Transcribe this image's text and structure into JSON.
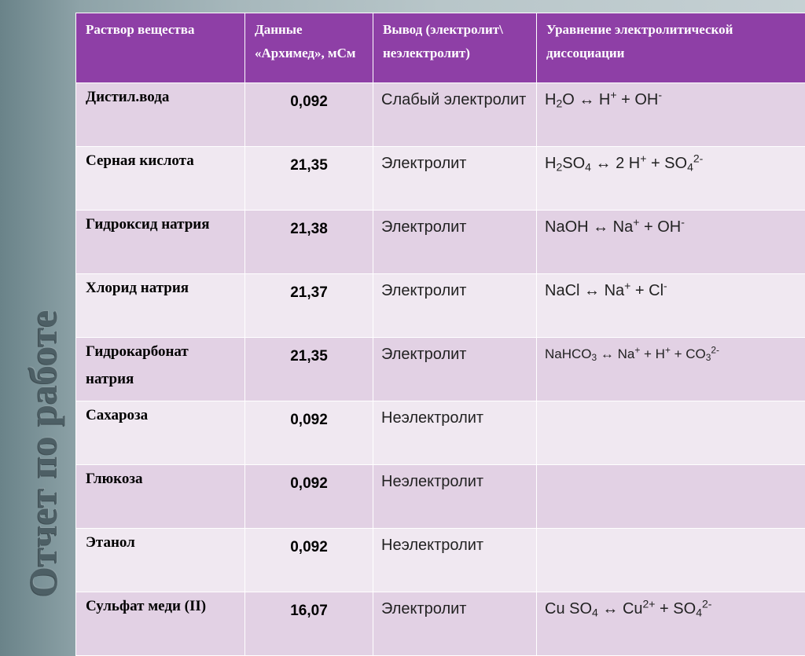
{
  "side_title": "Отчет по работе",
  "table": {
    "headers": [
      "Раствор вещества",
      "Данные «Архимед», мСм",
      "Вывод (электролит\\ неэлектролит)",
      "Уравнение электролитической диссоциации"
    ],
    "rows": [
      {
        "substance": "Дистил.вода",
        "value": "0,092",
        "conclusion": "Слабый электролит",
        "equation": [
          {
            "t": "H"
          },
          {
            "t": "2",
            "s": "sub"
          },
          {
            "t": "O ↔ H"
          },
          {
            "t": "+",
            "s": "sup"
          },
          {
            "t": " + OH"
          },
          {
            "t": "-",
            "s": "sup"
          }
        ]
      },
      {
        "substance": "Серная кислота",
        "value": "21,35",
        "conclusion": "Электролит",
        "equation": [
          {
            "t": "H"
          },
          {
            "t": "2",
            "s": "sub"
          },
          {
            "t": "SO"
          },
          {
            "t": "4",
            "s": "sub"
          },
          {
            "t": " ↔ 2 H"
          },
          {
            "t": "+",
            "s": "sup"
          },
          {
            "t": " + SO"
          },
          {
            "t": "4",
            "s": "sub"
          },
          {
            "t": "2-",
            "s": "sup"
          }
        ]
      },
      {
        "substance": "Гидроксид натрия",
        "value": "21,38",
        "conclusion": "Электролит",
        "equation": [
          {
            "t": "NaOH ↔ Na"
          },
          {
            "t": "+",
            "s": "sup"
          },
          {
            "t": " + OH"
          },
          {
            "t": "-",
            "s": "sup"
          }
        ]
      },
      {
        "substance": "Хлорид натрия",
        "value": "21,37",
        "conclusion": "Электролит",
        "equation": [
          {
            "t": "NaCl ↔ Na"
          },
          {
            "t": "+",
            "s": "sup"
          },
          {
            "t": " + Cl"
          },
          {
            "t": "-",
            "s": "sup"
          }
        ]
      },
      {
        "substance": "Гидрокарбонат натрия",
        "value": "21,35",
        "conclusion": "Электролит",
        "small": true,
        "equation": [
          {
            "t": "NaHCO"
          },
          {
            "t": "3",
            "s": "sub"
          },
          {
            "t": " ↔ Na"
          },
          {
            "t": "+",
            "s": "sup"
          },
          {
            "t": " + H"
          },
          {
            "t": "+",
            "s": "sup"
          },
          {
            "t": " + CO"
          },
          {
            "t": "3",
            "s": "sub"
          },
          {
            "t": "2-",
            "s": "sup"
          }
        ]
      },
      {
        "substance": "Сахароза",
        "value": "0,092",
        "conclusion": "Неэлектролит",
        "equation": []
      },
      {
        "substance": "Глюкоза",
        "value": "0,092",
        "conclusion": "Неэлектролит",
        "equation": []
      },
      {
        "substance": "Этанол",
        "value": "0,092",
        "conclusion": "Неэлектролит",
        "equation": []
      },
      {
        "substance": "Сульфат меди (II)",
        "value": "16,07",
        "conclusion": "Электролит",
        "equation": [
          {
            "t": "Cu SO"
          },
          {
            "t": "4",
            "s": "sub"
          },
          {
            "t": " ↔ Cu"
          },
          {
            "t": "2+",
            "s": "sup"
          },
          {
            "t": " + SO"
          },
          {
            "t": "4",
            "s": "sub"
          },
          {
            "t": "2-",
            "s": "sup"
          }
        ]
      }
    ]
  },
  "colors": {
    "header_bg": "#8e3fa6",
    "row_dark": "#e2d1e4",
    "row_light": "#f0e8f1",
    "title_text": "#4d5f65"
  }
}
